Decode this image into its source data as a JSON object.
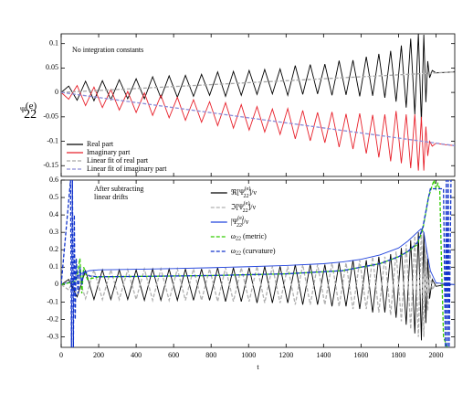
{
  "chart_data": [
    {
      "type": "line",
      "ylabel": {
        "symbol": "Ψ",
        "sup": "(e)",
        "sub": "22"
      },
      "annotations": [
        "No integration constants"
      ],
      "xlim": [
        0,
        2100
      ],
      "xticks": [
        0,
        200,
        400,
        600,
        800,
        1000,
        1200,
        1400,
        1600,
        1800,
        2000
      ],
      "ylim": [
        -0.172,
        0.12
      ],
      "yticks": [
        -0.15,
        -0.1,
        -0.05,
        0,
        0.05,
        0.1
      ],
      "legend": "lower left",
      "series": [
        {
          "name": {
            "pre": "Real part"
          },
          "color": "#000000",
          "style": "solid",
          "x": [
            0,
            40,
            85,
            130,
            175,
            220,
            265,
            310,
            355,
            400,
            444,
            488,
            532,
            576,
            620,
            663,
            706,
            749,
            792,
            835,
            877,
            919,
            961,
            1003,
            1045,
            1086,
            1127,
            1168,
            1209,
            1249,
            1289,
            1329,
            1368,
            1407,
            1445,
            1483,
            1520,
            1557,
            1593,
            1628,
            1662,
            1695,
            1727,
            1758,
            1787,
            1815,
            1841,
            1865,
            1887,
            1906,
            1922,
            1935,
            1946,
            1956,
            1966,
            1980,
            2000,
            2050,
            2100
          ],
          "values": [
            0,
            0.013,
            -0.016,
            0.023,
            -0.017,
            0.024,
            -0.015,
            0.026,
            -0.013,
            0.028,
            -0.013,
            0.032,
            -0.011,
            0.034,
            -0.01,
            0.035,
            -0.008,
            0.037,
            -0.006,
            0.042,
            -0.008,
            0.043,
            -0.006,
            0.045,
            -0.004,
            0.047,
            -0.003,
            0.048,
            -0.006,
            0.055,
            -0.004,
            0.057,
            -0.003,
            0.058,
            -0.006,
            0.065,
            -0.005,
            0.066,
            -0.008,
            0.073,
            -0.007,
            0.079,
            -0.011,
            0.085,
            -0.019,
            0.096,
            -0.031,
            0.11,
            -0.045,
            0.12,
            -0.062,
            0.118,
            -0.02,
            0.064,
            0.03,
            0.045,
            0.04,
            0.041,
            0.042
          ]
        },
        {
          "name": {
            "pre": "Imaginary part"
          },
          "color": "#e8202a",
          "style": "solid",
          "x": [
            0,
            40,
            85,
            130,
            175,
            220,
            265,
            310,
            355,
            400,
            444,
            488,
            532,
            576,
            620,
            663,
            706,
            749,
            792,
            835,
            877,
            919,
            961,
            1003,
            1045,
            1086,
            1127,
            1168,
            1209,
            1249,
            1289,
            1329,
            1368,
            1407,
            1445,
            1483,
            1520,
            1557,
            1593,
            1628,
            1662,
            1695,
            1727,
            1758,
            1787,
            1815,
            1841,
            1865,
            1887,
            1906,
            1922,
            1935,
            1946,
            1956,
            1966,
            1980,
            2000,
            2050,
            2100
          ],
          "values": [
            0,
            -0.014,
            0.014,
            -0.027,
            0.011,
            -0.031,
            0.006,
            -0.036,
            0.002,
            -0.041,
            -0.001,
            -0.047,
            -0.006,
            -0.052,
            -0.01,
            -0.057,
            -0.015,
            -0.061,
            -0.019,
            -0.068,
            -0.021,
            -0.073,
            -0.025,
            -0.077,
            -0.029,
            -0.081,
            -0.034,
            -0.086,
            -0.033,
            -0.095,
            -0.037,
            -0.099,
            -0.041,
            -0.103,
            -0.04,
            -0.112,
            -0.044,
            -0.116,
            -0.043,
            -0.125,
            -0.046,
            -0.133,
            -0.045,
            -0.141,
            -0.038,
            -0.145,
            -0.045,
            -0.155,
            -0.045,
            -0.16,
            -0.05,
            -0.16,
            -0.07,
            -0.13,
            -0.1,
            -0.11,
            -0.104,
            -0.107,
            -0.109
          ]
        },
        {
          "name": {
            "pre": "Linear fit of real part"
          },
          "color": "#a8a8a8",
          "style": "dashed",
          "x": [
            0,
            2100
          ],
          "values": [
            0,
            0.042
          ]
        },
        {
          "name": {
            "pre": "Linear fit of imaginary part"
          },
          "color": "#8c8cd8",
          "style": "dashed",
          "x": [
            0,
            2100
          ],
          "values": [
            0,
            -0.109
          ]
        }
      ]
    },
    {
      "type": "line",
      "xlabel": "t",
      "annotations": [
        "After subtracting",
        "linear drifts"
      ],
      "xlim": [
        0,
        2100
      ],
      "xticks": [
        0,
        200,
        400,
        600,
        800,
        1000,
        1200,
        1400,
        1600,
        1800,
        2000
      ],
      "ylim": [
        -0.36,
        0.6
      ],
      "yticks": [
        -0.3,
        -0.2,
        -0.1,
        0,
        0.1,
        0.2,
        0.3,
        0.4,
        0.5,
        0.6
      ],
      "legend": "upper center",
      "series": [
        {
          "name": {
            "pre": "ℜ[Ψ",
            "sup": "(e)",
            "sub": "22",
            "post": "]/ν"
          },
          "color": "#000000",
          "style": "solid",
          "x": [
            0,
            40,
            85,
            130,
            175,
            220,
            265,
            310,
            355,
            400,
            444,
            488,
            532,
            576,
            620,
            663,
            706,
            749,
            792,
            835,
            877,
            919,
            961,
            1003,
            1045,
            1086,
            1127,
            1168,
            1209,
            1249,
            1289,
            1329,
            1368,
            1407,
            1445,
            1483,
            1520,
            1557,
            1593,
            1628,
            1662,
            1695,
            1727,
            1758,
            1787,
            1815,
            1841,
            1865,
            1887,
            1906,
            1922,
            1935,
            1946,
            1956,
            1966,
            1980,
            2000,
            2050,
            2100
          ],
          "values": [
            0,
            0.03,
            -0.07,
            0.08,
            -0.085,
            0.085,
            -0.085,
            0.085,
            -0.085,
            0.085,
            -0.09,
            0.09,
            -0.09,
            0.09,
            -0.09,
            0.09,
            -0.09,
            0.09,
            -0.09,
            0.097,
            -0.097,
            0.097,
            -0.097,
            0.097,
            -0.105,
            0.105,
            -0.105,
            0.105,
            -0.105,
            0.115,
            -0.115,
            0.115,
            -0.115,
            0.115,
            -0.125,
            0.125,
            -0.125,
            0.14,
            -0.14,
            0.14,
            -0.16,
            0.16,
            -0.16,
            0.175,
            -0.19,
            0.21,
            -0.23,
            0.255,
            -0.28,
            0.3,
            -0.32,
            0.3,
            -0.22,
            0.15,
            -0.08,
            0.03,
            -0.01,
            0,
            0
          ]
        },
        {
          "name": {
            "pre": "ℑ[Ψ",
            "sup": "(e)",
            "sub": "22",
            "post": "]/ν"
          },
          "color": "#b0b0b0",
          "style": "dashed",
          "x": [
            0,
            40,
            85,
            130,
            175,
            220,
            265,
            310,
            355,
            400,
            444,
            488,
            532,
            576,
            620,
            663,
            706,
            749,
            792,
            835,
            877,
            919,
            961,
            1003,
            1045,
            1086,
            1127,
            1168,
            1209,
            1249,
            1289,
            1329,
            1368,
            1407,
            1445,
            1483,
            1520,
            1557,
            1593,
            1628,
            1662,
            1695,
            1727,
            1758,
            1787,
            1815,
            1841,
            1865,
            1887,
            1906,
            1922,
            1935,
            1946,
            1956,
            1966,
            1980,
            2000,
            2050,
            2100
          ],
          "values": [
            0,
            -0.03,
            0.07,
            -0.08,
            0.085,
            -0.085,
            0.085,
            -0.085,
            0.085,
            -0.085,
            0.09,
            -0.09,
            0.09,
            -0.09,
            0.09,
            -0.09,
            0.09,
            -0.09,
            0.09,
            -0.097,
            0.097,
            -0.097,
            0.097,
            -0.097,
            0.105,
            -0.105,
            0.105,
            -0.105,
            0.105,
            -0.115,
            0.115,
            -0.115,
            0.115,
            -0.115,
            0.125,
            -0.125,
            0.125,
            -0.14,
            0.14,
            -0.14,
            0.16,
            -0.16,
            0.16,
            -0.175,
            0.19,
            -0.21,
            0.23,
            -0.255,
            0.28,
            -0.3,
            0.32,
            -0.3,
            0.22,
            -0.15,
            0.08,
            -0.03,
            0.01,
            0,
            0
          ]
        },
        {
          "name": {
            "pre": "|Ψ",
            "sup": "(e)",
            "sub": "22",
            "post": "|/ν"
          },
          "color": "#2244dd",
          "style": "solid",
          "x": [
            0,
            60,
            100,
            150,
            200,
            400,
            600,
            800,
            1000,
            1200,
            1400,
            1500,
            1600,
            1700,
            1800,
            1850,
            1900,
            1920,
            1935,
            1950,
            1970,
            2000,
            2100
          ],
          "values": [
            0,
            0.02,
            0.06,
            0.08,
            0.085,
            0.088,
            0.092,
            0.097,
            0.103,
            0.11,
            0.12,
            0.13,
            0.145,
            0.17,
            0.21,
            0.25,
            0.3,
            0.32,
            0.3,
            0.2,
            0.08,
            0.01,
            0
          ]
        },
        {
          "name": {
            "pre": "ω",
            "sub": "22",
            "post": " (metric)"
          },
          "color": "#33cc00",
          "style": "dashed",
          "x": [
            0,
            80,
            100,
            110,
            120,
            140,
            200,
            400,
            800,
            1200,
            1500,
            1700,
            1800,
            1850,
            1900,
            1930,
            1960,
            1980,
            1990,
            2000,
            2010,
            2020,
            2030,
            2040,
            2060
          ],
          "values": [
            0,
            0.02,
            0.15,
            -0.05,
            0.1,
            0.03,
            0.045,
            0.047,
            0.052,
            0.062,
            0.08,
            0.12,
            0.16,
            0.19,
            0.23,
            0.32,
            0.5,
            0.57,
            0.6,
            0.55,
            0.58,
            0.55,
            0.1,
            -0.3,
            -0.36
          ]
        },
        {
          "name": {
            "pre": "ω",
            "sub": "22",
            "post": " (curvature)"
          },
          "color": "#1133cc",
          "style": "dashed",
          "x": [
            0,
            50,
            55,
            60,
            65,
            70,
            75,
            80,
            90,
            100,
            110,
            120,
            150,
            200,
            400,
            800,
            1200,
            1500,
            1700,
            1800,
            1850,
            1900,
            1930,
            1960,
            1970,
            1990,
            2010,
            2040,
            2050,
            2055,
            2060,
            2065,
            2070,
            2080
          ],
          "values": [
            0,
            0.6,
            -0.36,
            0.6,
            -0.36,
            0.4,
            -0.2,
            0.15,
            -0.05,
            0.1,
            0,
            0.08,
            0.05,
            0.045,
            0.047,
            0.052,
            0.062,
            0.08,
            0.12,
            0.16,
            0.19,
            0.24,
            0.33,
            0.5,
            0.55,
            0.55,
            0.55,
            0.55,
            -0.36,
            0.6,
            -0.36,
            0.6,
            -0.36,
            0.6
          ]
        }
      ]
    }
  ]
}
